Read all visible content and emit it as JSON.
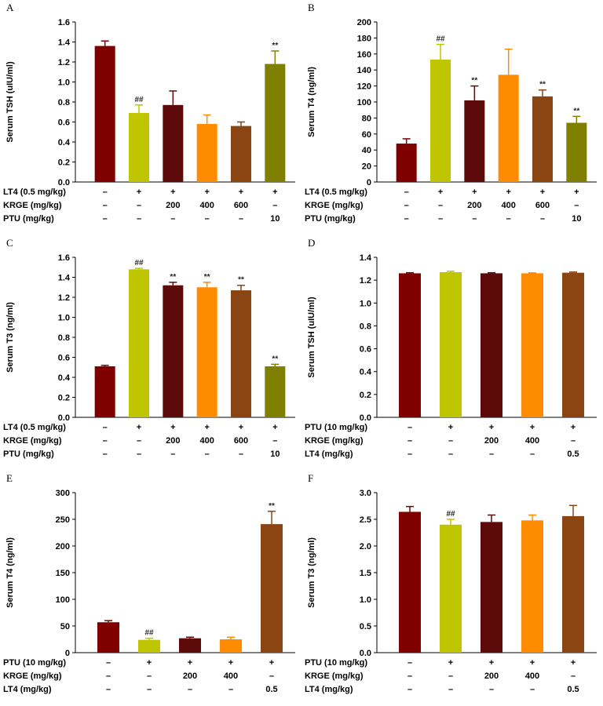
{
  "chart_data": [
    {
      "type": "bar",
      "panel": "A",
      "ylabel": "Serum TSH (uIU/ml)",
      "ylim": [
        0,
        1.6
      ],
      "yticks": [
        "0.0",
        "0.2",
        "0.4",
        "0.6",
        "0.8",
        "1.0",
        "1.2",
        "1.4",
        "1.6"
      ],
      "values": [
        1.36,
        0.69,
        0.77,
        0.58,
        0.56,
        1.18
      ],
      "errors": [
        0.05,
        0.08,
        0.14,
        0.09,
        0.04,
        0.13
      ],
      "annotations": [
        "",
        "##",
        "",
        "",
        "",
        "**"
      ],
      "colors": [
        "#800000",
        "#bfc600",
        "#5c0a0a",
        "#ff8c00",
        "#8b4513",
        "#808000"
      ],
      "treatment_table": [
        {
          "label": "LT4 (0.5 mg/kg)",
          "cells": [
            "–",
            "+",
            "+",
            "+",
            "+",
            "+"
          ]
        },
        {
          "label": "KRGE (mg/kg)",
          "cells": [
            "–",
            "–",
            "200",
            "400",
            "600",
            "–"
          ]
        },
        {
          "label": "PTU (mg/kg)",
          "cells": [
            "–",
            "–",
            "–",
            "–",
            "–",
            "10"
          ]
        }
      ]
    },
    {
      "type": "bar",
      "panel": "B",
      "ylabel": "Serum T4 (ng/ml)",
      "ylim": [
        0,
        200
      ],
      "yticks": [
        "0",
        "20",
        "40",
        "60",
        "80",
        "100",
        "120",
        "140",
        "160",
        "180",
        "200"
      ],
      "values": [
        48,
        153,
        102,
        134,
        107,
        74
      ],
      "errors": [
        6,
        19,
        18,
        32,
        8,
        8
      ],
      "annotations": [
        "",
        "##",
        "**",
        "",
        "**",
        "**"
      ],
      "colors": [
        "#800000",
        "#bfc600",
        "#5c0a0a",
        "#ff8c00",
        "#8b4513",
        "#808000"
      ],
      "treatment_table": [
        {
          "label": "LT4 (0.5 mg/kg)",
          "cells": [
            "–",
            "+",
            "+",
            "+",
            "+",
            "+"
          ]
        },
        {
          "label": "KRGE (mg/kg)",
          "cells": [
            "–",
            "–",
            "200",
            "400",
            "600",
            "–"
          ]
        },
        {
          "label": "PTU (mg/kg)",
          "cells": [
            "–",
            "–",
            "–",
            "–",
            "–",
            "10"
          ]
        }
      ]
    },
    {
      "type": "bar",
      "panel": "C",
      "ylabel": "Serum T3 (ng/ml)",
      "ylim": [
        0,
        1.6
      ],
      "yticks": [
        "0.0",
        "0.2",
        "0.4",
        "0.6",
        "0.8",
        "1.0",
        "1.2",
        "1.4",
        "1.6"
      ],
      "values": [
        0.51,
        1.48,
        1.32,
        1.3,
        1.27,
        0.51
      ],
      "errors": [
        0.01,
        0.01,
        0.03,
        0.05,
        0.05,
        0.02
      ],
      "annotations": [
        "",
        "##",
        "**",
        "**",
        "**",
        "**"
      ],
      "colors": [
        "#800000",
        "#bfc600",
        "#5c0a0a",
        "#ff8c00",
        "#8b4513",
        "#808000"
      ],
      "treatment_table": [
        {
          "label": "LT4 (0.5 mg/kg)",
          "cells": [
            "–",
            "+",
            "+",
            "+",
            "+",
            "+"
          ]
        },
        {
          "label": "KRGE (mg/kg)",
          "cells": [
            "–",
            "–",
            "200",
            "400",
            "600",
            "–"
          ]
        },
        {
          "label": "PTU (mg/kg)",
          "cells": [
            "–",
            "–",
            "–",
            "–",
            "–",
            "10"
          ]
        }
      ]
    },
    {
      "type": "bar",
      "panel": "D",
      "ylabel": "Serum TSH (uIU/ml)",
      "ylim": [
        0,
        1.4
      ],
      "yticks": [
        "0.0",
        "0.2",
        "0.4",
        "0.6",
        "0.8",
        "1.0",
        "1.2",
        "1.4"
      ],
      "values": [
        1.26,
        1.27,
        1.26,
        1.26,
        1.265
      ],
      "errors": [
        0.005,
        0.008,
        0.005,
        0.004,
        0.006
      ],
      "annotations": [
        "",
        "",
        "",
        "",
        ""
      ],
      "colors": [
        "#800000",
        "#bfc600",
        "#5c0a0a",
        "#ff8c00",
        "#8b4513"
      ],
      "treatment_table": [
        {
          "label": "PTU (10 mg/kg)",
          "cells": [
            "–",
            "+",
            "+",
            "+",
            "+"
          ]
        },
        {
          "label": "KRGE (mg/kg)",
          "cells": [
            "–",
            "–",
            "200",
            "400",
            "–"
          ]
        },
        {
          "label": "LT4 (mg/kg)",
          "cells": [
            "–",
            "–",
            "–",
            "–",
            "0.5"
          ]
        }
      ]
    },
    {
      "type": "bar",
      "panel": "E",
      "ylabel": "Serum T4 (ng/ml)",
      "ylim": [
        0,
        300
      ],
      "yticks": [
        "0",
        "50",
        "100",
        "150",
        "200",
        "250",
        "300"
      ],
      "values": [
        57,
        24,
        27,
        25,
        241
      ],
      "errors": [
        3,
        3,
        2,
        4,
        24
      ],
      "annotations": [
        "",
        "##",
        "",
        "",
        "**"
      ],
      "colors": [
        "#800000",
        "#bfc600",
        "#5c0a0a",
        "#ff8c00",
        "#8b4513"
      ],
      "treatment_table": [
        {
          "label": "PTU (10 mg/kg)",
          "cells": [
            "–",
            "+",
            "+",
            "+",
            "+"
          ]
        },
        {
          "label": "KRGE (mg/kg)",
          "cells": [
            "–",
            "–",
            "200",
            "400",
            "–"
          ]
        },
        {
          "label": "LT4 (mg/kg)",
          "cells": [
            "–",
            "–",
            "–",
            "–",
            "0.5"
          ]
        }
      ]
    },
    {
      "type": "bar",
      "panel": "F",
      "ylabel": "Serum T3 (ng/ml)",
      "ylim": [
        0,
        3.0
      ],
      "yticks": [
        "0.0",
        "0.5",
        "1.0",
        "1.5",
        "2.0",
        "2.5",
        "3.0"
      ],
      "values": [
        2.64,
        2.4,
        2.45,
        2.48,
        2.56
      ],
      "errors": [
        0.1,
        0.1,
        0.13,
        0.1,
        0.2
      ],
      "annotations": [
        "",
        "##",
        "",
        "",
        ""
      ],
      "colors": [
        "#800000",
        "#bfc600",
        "#5c0a0a",
        "#ff8c00",
        "#8b4513"
      ],
      "treatment_table": [
        {
          "label": "PTU (10 mg/kg)",
          "cells": [
            "–",
            "+",
            "+",
            "+",
            "+"
          ]
        },
        {
          "label": "KRGE (mg/kg)",
          "cells": [
            "–",
            "–",
            "200",
            "400",
            "–"
          ]
        },
        {
          "label": "LT4 (mg/kg)",
          "cells": [
            "–",
            "–",
            "–",
            "–",
            "0.5"
          ]
        }
      ]
    }
  ]
}
